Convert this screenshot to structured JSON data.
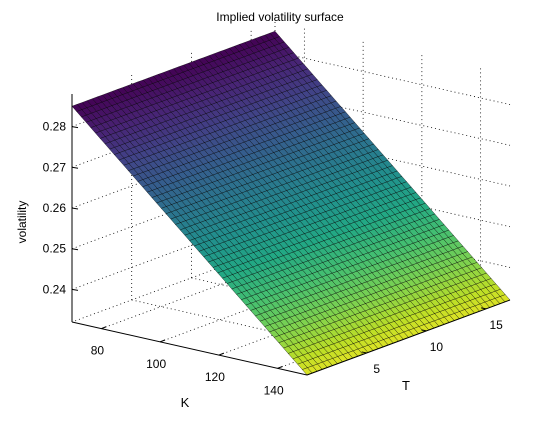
{
  "chart_data": {
    "type": "surface",
    "title": "Implied volatility surface",
    "xlabel": "K",
    "ylabel": "T",
    "zlabel": "volatility",
    "xlim": [
      70,
      150
    ],
    "ylim": [
      0,
      17
    ],
    "zlim": [
      0.232,
      0.288
    ],
    "xticks": [
      "80",
      "100",
      "120",
      "140"
    ],
    "yticks": [
      "5",
      "10",
      "15"
    ],
    "zticks": [
      "0.24",
      "0.25",
      "0.26",
      "0.27",
      "0.28"
    ],
    "grid": true,
    "colormap": "viridis",
    "corner_values": {
      "K70_T0": 0.285,
      "K70_T17": 0.285,
      "K150_T0": 0.232,
      "K150_T17": 0.232
    }
  }
}
